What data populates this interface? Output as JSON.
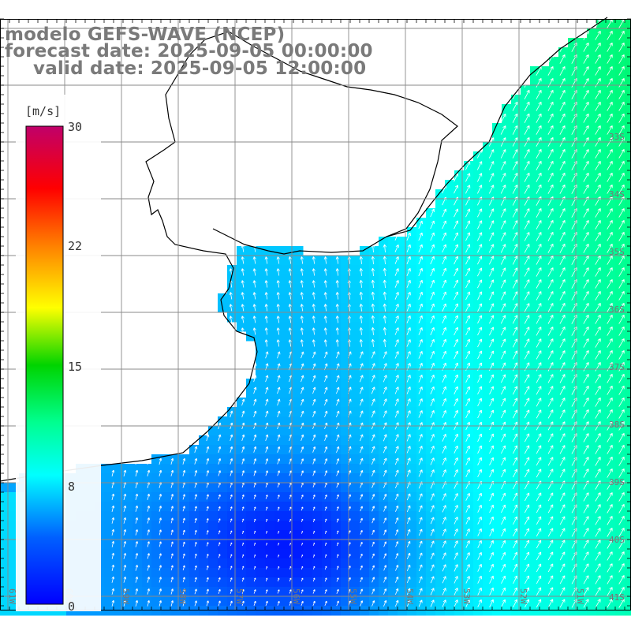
{
  "header": {
    "model": "modelo GEFS-WAVE (NCEP)",
    "forecast": "forecast date: 2025-09-05 00:00:00",
    "valid": "valid date: 2025-09-05 12:00:00"
  },
  "colorbar": {
    "unit": "[m/s]",
    "ticks": [
      "30",
      "22",
      "15",
      "8",
      "0"
    ],
    "tick_values": [
      30,
      22,
      15,
      8,
      0
    ],
    "colors": [
      "#0000ff",
      "#0060ff",
      "#00c8ff",
      "#00ff9a",
      "#00d400",
      "#ffff00",
      "#ff8000",
      "#ff0000",
      "#c0006a"
    ]
  },
  "map": {
    "lat_labels": [
      "33S",
      "34S",
      "35S",
      "36S",
      "37S",
      "38S",
      "39S",
      "40S",
      "41S"
    ],
    "lon_labels": [
      "61W",
      "60W",
      "59W",
      "58W",
      "57W",
      "56W",
      "55W",
      "54W",
      "53W",
      "52W",
      "51W"
    ],
    "variable": "wind speed",
    "colors": {
      "land": "#ffffff",
      "grid": "#8a8a8a",
      "coast": "#000000",
      "arrow": "#ffffff"
    }
  }
}
